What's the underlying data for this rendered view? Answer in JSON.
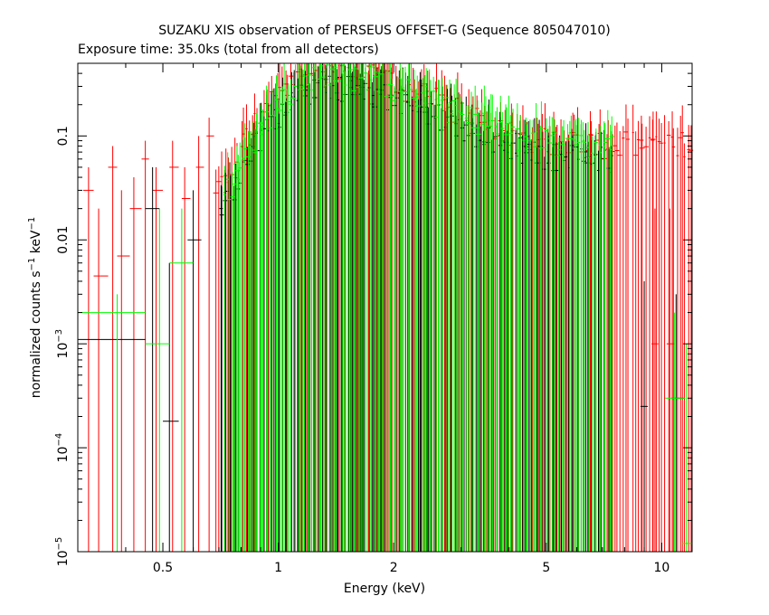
{
  "chart_data": {
    "type": "scatter",
    "title": "SUZAKU XIS observation of PERSEUS OFFSET-G (Sequence 805047010)",
    "subtitle": "Exposure time: 35.0ks (total from all detectors)",
    "xlabel": "Energy (keV)",
    "ylabel_main": "normalized counts s",
    "ylabel_sup1": "−1",
    "ylabel_mid": " keV",
    "ylabel_sup2": "−1",
    "xscale": "log",
    "yscale": "log",
    "xlim": [
      0.3,
      12
    ],
    "ylim": [
      1e-05,
      0.5
    ],
    "x_ticks": [
      {
        "value": 0.5,
        "label": "0.5"
      },
      {
        "value": 1,
        "label": "1"
      },
      {
        "value": 2,
        "label": "2"
      },
      {
        "value": 5,
        "label": "5"
      },
      {
        "value": 10,
        "label": "10"
      }
    ],
    "y_ticks": [
      {
        "value": 0.1,
        "base": "0.1",
        "exp": ""
      },
      {
        "value": 0.01,
        "base": "0.01",
        "exp": ""
      },
      {
        "value": 0.001,
        "base": "10",
        "exp": "−3"
      },
      {
        "value": 0.0001,
        "base": "10",
        "exp": "−4"
      },
      {
        "value": 1e-05,
        "base": "10",
        "exp": "−5"
      }
    ],
    "series": [
      {
        "color": "#000000",
        "points": [
          {
            "x": 0.38,
            "xerr": [
              0.3,
              0.45
            ],
            "y": 0.0011,
            "yerr": [
              1e-05,
              0.0011
            ]
          },
          {
            "x": 0.47,
            "xerr": [
              0.45,
              0.49
            ],
            "y": 0.02,
            "yerr": [
              1e-05,
              0.05
            ]
          },
          {
            "x": 0.52,
            "xerr": [
              0.5,
              0.55
            ],
            "y": 0.00018,
            "yerr": [
              1e-05,
              0.006
            ]
          },
          {
            "x": 0.6,
            "xerr": [
              0.58,
              0.63
            ],
            "y": 0.01,
            "yerr": [
              1e-05,
              0.03
            ]
          },
          {
            "x": 9.0,
            "xerr": [
              8.8,
              9.2
            ],
            "y": 0.00025,
            "yerr": [
              1e-05,
              0.004
            ]
          },
          {
            "x": 10.9,
            "xerr": [
              10.6,
              11.5
            ],
            "y": 0.0003,
            "yerr": [
              1e-05,
              0.003
            ]
          }
        ],
        "band_low": 0.7,
        "band_high": 7.5,
        "band_peak": 0.3
      },
      {
        "color": "#ff0000",
        "points": [
          {
            "x": 0.32,
            "xerr": [
              0.31,
              0.33
            ],
            "y": 0.03,
            "yerr": [
              1e-05,
              0.05
            ]
          },
          {
            "x": 0.34,
            "xerr": [
              0.33,
              0.36
            ],
            "y": 0.0045,
            "yerr": [
              1e-05,
              0.02
            ]
          },
          {
            "x": 0.37,
            "xerr": [
              0.36,
              0.38
            ],
            "y": 0.05,
            "yerr": [
              1e-05,
              0.08
            ]
          },
          {
            "x": 0.39,
            "xerr": [
              0.38,
              0.41
            ],
            "y": 0.007,
            "yerr": [
              1e-05,
              0.03
            ]
          },
          {
            "x": 0.42,
            "xerr": [
              0.41,
              0.44
            ],
            "y": 0.02,
            "yerr": [
              1e-05,
              0.04
            ]
          },
          {
            "x": 0.45,
            "xerr": [
              0.44,
              0.46
            ],
            "y": 0.06,
            "yerr": [
              1e-05,
              0.09
            ]
          },
          {
            "x": 0.48,
            "xerr": [
              0.47,
              0.5
            ],
            "y": 0.03,
            "yerr": [
              1e-05,
              0.05
            ]
          },
          {
            "x": 0.53,
            "xerr": [
              0.52,
              0.55
            ],
            "y": 0.05,
            "yerr": [
              1e-05,
              0.09
            ]
          },
          {
            "x": 0.57,
            "xerr": [
              0.56,
              0.59
            ],
            "y": 0.025,
            "yerr": [
              1e-05,
              0.05
            ]
          },
          {
            "x": 0.62,
            "xerr": [
              0.61,
              0.64
            ],
            "y": 0.05,
            "yerr": [
              1e-05,
              0.1
            ]
          },
          {
            "x": 0.66,
            "xerr": [
              0.65,
              0.68
            ],
            "y": 0.1,
            "yerr": [
              1e-05,
              0.15
            ]
          },
          {
            "x": 9.6,
            "xerr": [
              9.4,
              9.8
            ],
            "y": 0.001,
            "yerr": [
              1e-05,
              0.02
            ]
          },
          {
            "x": 10.5,
            "xerr": [
              10.3,
              10.8
            ],
            "y": 0.001,
            "yerr": [
              1e-05,
              0.02
            ]
          }
        ],
        "band_low": 0.68,
        "band_high": 12,
        "band_peak": 0.42
      },
      {
        "color": "#00ff00",
        "points": [
          {
            "x": 0.38,
            "xerr": [
              0.3,
              0.45
            ],
            "y": 0.002,
            "yerr": [
              1e-05,
              0.003
            ]
          },
          {
            "x": 0.49,
            "xerr": [
              0.45,
              0.52
            ],
            "y": 0.001,
            "yerr": [
              1e-05,
              0.02
            ]
          },
          {
            "x": 0.56,
            "xerr": [
              0.52,
              0.6
            ],
            "y": 0.006,
            "yerr": [
              1e-05,
              0.02
            ]
          },
          {
            "x": 10.8,
            "xerr": [
              10.2,
              11.5
            ],
            "y": 0.0003,
            "yerr": [
              1e-05,
              0.002
            ]
          },
          {
            "x": 11.6,
            "xerr": [
              11.3,
              12
            ],
            "y": 1.2e-05,
            "yerr": [
              1e-05,
              0.001
            ]
          }
        ],
        "band_low": 0.72,
        "band_high": 7.5,
        "band_peak": 0.4
      }
    ]
  }
}
